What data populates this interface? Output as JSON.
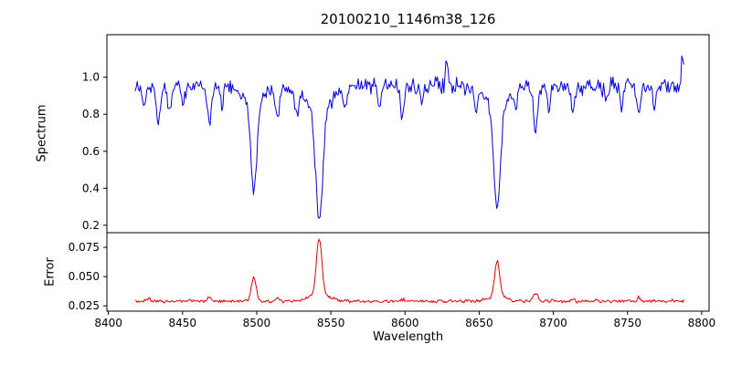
{
  "figure": {
    "title": "20100210_1146m38_126",
    "xlabel": "Wavelength",
    "bg_color": "#ffffff",
    "frame_color": "#000000",
    "text_color": "#000000"
  },
  "x_axis": {
    "xlim": [
      8399,
      8805
    ],
    "tick_values": [
      8400,
      8450,
      8500,
      8550,
      8600,
      8650,
      8700,
      8750,
      8800
    ],
    "tick_labels": [
      "8400",
      "8450",
      "8500",
      "8550",
      "8600",
      "8650",
      "8700",
      "8750",
      "8800"
    ]
  },
  "chart_data": [
    {
      "type": "line",
      "name": "spectrum",
      "ylabel": "Spectrum",
      "color": "#0000dd",
      "x_start": 8418,
      "x_end": 8788,
      "points": 520,
      "baseline": 0.955,
      "noise_amplitude": 0.036,
      "noise_seed": 20100210,
      "ylim": [
        0.16,
        1.23
      ],
      "ytick_values": [
        0.2,
        0.4,
        0.6,
        0.8,
        1.0
      ],
      "ytick_labels": [
        "0.2",
        "0.4",
        "0.6",
        "0.8",
        "1.0"
      ],
      "absorption_features_note": "Ca II triplet 8498/8542/8662 with minima ~0.38/0.21/0.28",
      "lines": [
        {
          "center": 8498.0,
          "depth": 0.47,
          "width": 2.0
        },
        {
          "center": 8498.0,
          "depth": 0.1,
          "width": 7.0
        },
        {
          "center": 8542.1,
          "depth": 0.615,
          "width": 2.4
        },
        {
          "center": 8542.1,
          "depth": 0.12,
          "width": 10.0
        },
        {
          "center": 8662.1,
          "depth": 0.57,
          "width": 2.2
        },
        {
          "center": 8662.1,
          "depth": 0.1,
          "width": 8.0
        },
        {
          "center": 8424.0,
          "depth": 0.1,
          "width": 1.2
        },
        {
          "center": 8433.5,
          "depth": 0.2,
          "width": 1.4
        },
        {
          "center": 8441.0,
          "depth": 0.16,
          "width": 1.2
        },
        {
          "center": 8450.5,
          "depth": 0.1,
          "width": 1.1
        },
        {
          "center": 8468.0,
          "depth": 0.2,
          "width": 1.4
        },
        {
          "center": 8476.5,
          "depth": 0.12,
          "width": 1.1
        },
        {
          "center": 8514.0,
          "depth": 0.17,
          "width": 1.3
        },
        {
          "center": 8527.0,
          "depth": 0.12,
          "width": 1.1
        },
        {
          "center": 8560.0,
          "depth": 0.1,
          "width": 1.1
        },
        {
          "center": 8583.0,
          "depth": 0.12,
          "width": 1.2
        },
        {
          "center": 8598.0,
          "depth": 0.16,
          "width": 1.3
        },
        {
          "center": 8611.5,
          "depth": 0.1,
          "width": 1.1
        },
        {
          "center": 8648.0,
          "depth": 0.1,
          "width": 1.1
        },
        {
          "center": 8674.5,
          "depth": 0.1,
          "width": 1.1
        },
        {
          "center": 8688.0,
          "depth": 0.24,
          "width": 1.4
        },
        {
          "center": 8697.0,
          "depth": 0.12,
          "width": 1.1
        },
        {
          "center": 8713.0,
          "depth": 0.14,
          "width": 1.2
        },
        {
          "center": 8736.0,
          "depth": 0.1,
          "width": 1.1
        },
        {
          "center": 8746.0,
          "depth": 0.12,
          "width": 1.1
        },
        {
          "center": 8757.5,
          "depth": 0.14,
          "width": 1.2
        },
        {
          "center": 8768.0,
          "depth": 0.1,
          "width": 1.1
        },
        {
          "center": 8628.0,
          "depth": -0.16,
          "width": 0.8
        },
        {
          "center": 8787.3,
          "depth": -0.15,
          "width": 0.9
        }
      ]
    },
    {
      "type": "line",
      "name": "error",
      "ylabel": "Error",
      "color": "#dd0000",
      "x_start": 8418,
      "x_end": 8788,
      "points": 520,
      "baseline": 0.029,
      "noise_amplitude": 0.0012,
      "noise_seed": 1146,
      "ylim": [
        0.0205,
        0.0875
      ],
      "ytick_values": [
        0.025,
        0.05,
        0.075
      ],
      "ytick_labels": [
        "0.025",
        "0.050",
        "0.075"
      ],
      "lines": [
        {
          "center": 8498.0,
          "depth": -0.021,
          "width": 1.6
        },
        {
          "center": 8542.1,
          "depth": -0.048,
          "width": 1.8
        },
        {
          "center": 8542.1,
          "depth": -0.006,
          "width": 7.0
        },
        {
          "center": 8662.1,
          "depth": -0.03,
          "width": 1.6
        },
        {
          "center": 8662.1,
          "depth": -0.005,
          "width": 5.0
        },
        {
          "center": 8688.0,
          "depth": -0.007,
          "width": 1.4
        },
        {
          "center": 8427.0,
          "depth": -0.003,
          "width": 1.2
        },
        {
          "center": 8468.0,
          "depth": -0.003,
          "width": 1.2
        },
        {
          "center": 8514.0,
          "depth": -0.003,
          "width": 1.2
        },
        {
          "center": 8598.0,
          "depth": -0.002,
          "width": 1.2
        },
        {
          "center": 8713.0,
          "depth": -0.002,
          "width": 1.2
        },
        {
          "center": 8757.5,
          "depth": -0.003,
          "width": 1.2
        }
      ]
    }
  ]
}
